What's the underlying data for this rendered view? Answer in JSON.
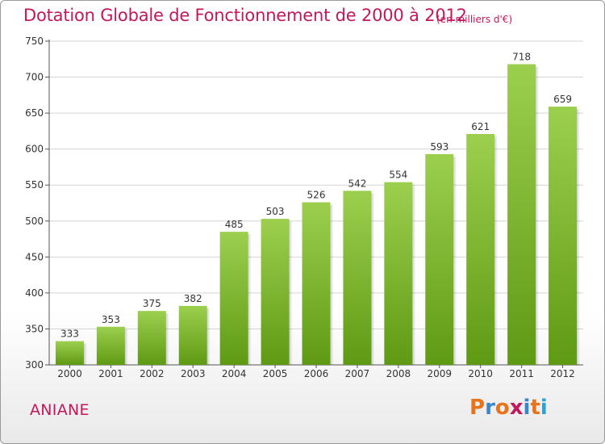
{
  "header": {
    "title": "Dotation Globale de Fonctionnement de 2000 à 2012",
    "subtitle": "(en milliers d'€)"
  },
  "footer": {
    "commune": "ANIANE",
    "logo": "Proxiti"
  },
  "colors": {
    "accent": "#c2185b",
    "bar_top": "#9ccf4e",
    "bar_bottom": "#5f9a14",
    "grid": "#d4d4d4",
    "axis": "#555555",
    "logo_letters": [
      "#e8731a",
      "#3a86c8",
      "#e8731a",
      "#c2185b",
      "#3a86c8",
      "#e8731a",
      "#2f9fd8"
    ]
  },
  "chart_data": {
    "type": "bar",
    "title": "Dotation Globale de Fonctionnement de 2000 à 2012",
    "subtitle": "(en milliers d'€)",
    "categories": [
      "2000",
      "2001",
      "2002",
      "2003",
      "2004",
      "2005",
      "2006",
      "2007",
      "2008",
      "2009",
      "2010",
      "2011",
      "2012"
    ],
    "values": [
      333,
      353,
      375,
      382,
      485,
      503,
      526,
      542,
      554,
      593,
      621,
      718,
      659
    ],
    "ylim": [
      300,
      750
    ],
    "yticks": [
      300,
      350,
      400,
      450,
      500,
      550,
      600,
      650,
      700,
      750
    ],
    "grid": true,
    "xlabel": "",
    "ylabel": ""
  }
}
